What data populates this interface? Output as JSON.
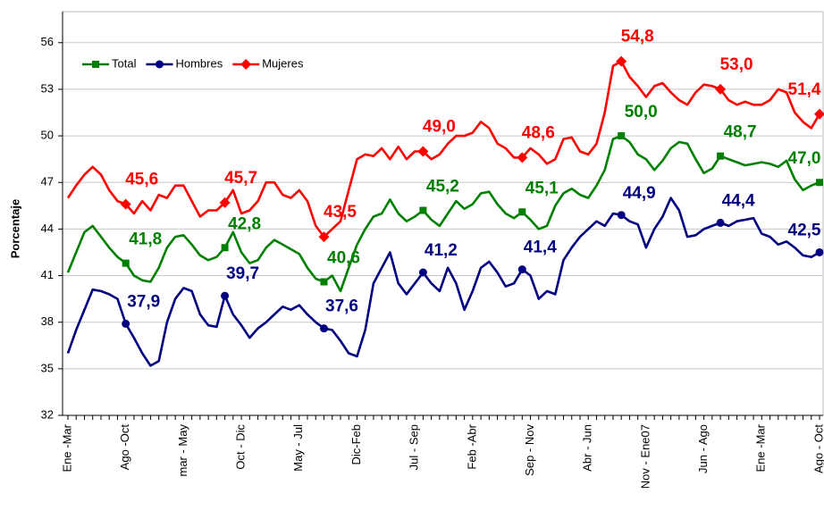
{
  "chart_data": {
    "type": "line",
    "y_label": "Porcentaje",
    "categories": [
      "Ene -Mar",
      null,
      null,
      null,
      null,
      null,
      null,
      "Ago -Oct",
      null,
      null,
      null,
      null,
      null,
      null,
      "mar - May",
      null,
      null,
      null,
      null,
      null,
      null,
      "Oct - Dic",
      null,
      null,
      null,
      null,
      null,
      null,
      "May - Jul",
      null,
      null,
      null,
      null,
      null,
      null,
      "Dic-Feb",
      null,
      null,
      null,
      null,
      null,
      null,
      "Jul - Sep",
      null,
      null,
      null,
      null,
      null,
      null,
      "Feb -Abr",
      null,
      null,
      null,
      null,
      null,
      null,
      "Sep - Nov",
      null,
      null,
      null,
      null,
      null,
      null,
      "Abr - Jun",
      null,
      null,
      null,
      null,
      null,
      null,
      "Nov - Ene07",
      null,
      null,
      null,
      null,
      null,
      null,
      "Jun - Ago",
      null,
      null,
      null,
      null,
      null,
      null,
      "Ene -Mar",
      null,
      null,
      null,
      null,
      null,
      null,
      "Ago - Oct"
    ],
    "series": [
      {
        "name": "Total",
        "color": "#008000",
        "marker": "square",
        "values": [
          41.2,
          42.5,
          43.8,
          44.2,
          43.5,
          42.8,
          42.2,
          41.8,
          41.0,
          40.7,
          40.6,
          41.5,
          42.8,
          43.5,
          43.6,
          43.0,
          42.3,
          42.0,
          42.2,
          42.8,
          43.8,
          42.5,
          41.8,
          42.0,
          42.8,
          43.3,
          43.0,
          42.7,
          42.4,
          41.5,
          40.8,
          40.6,
          41.0,
          40.0,
          41.5,
          43.0,
          44.0,
          44.8,
          45.0,
          45.9,
          45.0,
          44.5,
          44.8,
          45.2,
          44.6,
          44.2,
          45.0,
          45.8,
          45.3,
          45.6,
          46.3,
          46.4,
          45.6,
          45.0,
          44.7,
          45.1,
          44.6,
          44.0,
          44.2,
          45.5,
          46.3,
          46.6,
          46.2,
          46.0,
          46.8,
          47.8,
          49.8,
          50.0,
          49.6,
          48.8,
          48.5,
          47.8,
          48.4,
          49.2,
          49.6,
          49.5,
          48.5,
          47.6,
          47.9,
          48.7,
          48.5,
          48.3,
          48.1,
          48.2,
          48.3,
          48.2,
          48.0,
          48.4,
          47.2,
          46.5,
          46.8,
          47.0
        ],
        "value_labels": [
          null,
          null,
          null,
          null,
          null,
          null,
          null,
          "41,8",
          null,
          null,
          null,
          null,
          null,
          null,
          null,
          null,
          null,
          null,
          null,
          "42,8",
          null,
          null,
          null,
          null,
          null,
          null,
          null,
          null,
          null,
          null,
          null,
          "40,6",
          null,
          null,
          null,
          null,
          null,
          null,
          null,
          null,
          null,
          null,
          null,
          "45,2",
          null,
          null,
          null,
          null,
          null,
          null,
          null,
          null,
          null,
          null,
          null,
          "45,1",
          null,
          null,
          null,
          null,
          null,
          null,
          null,
          null,
          null,
          null,
          null,
          "50,0",
          null,
          null,
          null,
          null,
          null,
          null,
          null,
          null,
          null,
          null,
          null,
          "48,7",
          null,
          null,
          null,
          null,
          null,
          null,
          null,
          null,
          null,
          null,
          null,
          "47,0"
        ]
      },
      {
        "name": "Hombres",
        "color": "#000080",
        "marker": "circle",
        "values": [
          36.0,
          37.5,
          38.8,
          40.1,
          40.0,
          39.8,
          39.5,
          37.9,
          37.0,
          36.0,
          35.2,
          35.5,
          38.0,
          39.5,
          40.2,
          40.0,
          38.5,
          37.8,
          37.7,
          39.7,
          38.5,
          37.8,
          37.0,
          37.6,
          38.0,
          38.5,
          39.0,
          38.8,
          39.1,
          38.5,
          38.0,
          37.6,
          37.5,
          36.8,
          36.0,
          35.8,
          37.5,
          40.5,
          41.5,
          42.5,
          40.5,
          39.8,
          40.5,
          41.2,
          40.5,
          40.0,
          41.5,
          40.5,
          38.8,
          40.0,
          41.5,
          41.9,
          41.2,
          40.3,
          40.5,
          41.4,
          41.0,
          39.5,
          40.0,
          39.8,
          42.0,
          42.8,
          43.5,
          44.0,
          44.5,
          44.2,
          45.0,
          44.9,
          44.5,
          44.3,
          42.8,
          44.0,
          44.8,
          46.0,
          45.2,
          43.5,
          43.6,
          44.0,
          44.2,
          44.4,
          44.2,
          44.5,
          44.6,
          44.7,
          43.7,
          43.5,
          43.0,
          43.2,
          42.8,
          42.3,
          42.2,
          42.5
        ],
        "value_labels": [
          null,
          null,
          null,
          null,
          null,
          null,
          null,
          "37,9",
          null,
          null,
          null,
          null,
          null,
          null,
          null,
          null,
          null,
          null,
          null,
          "39,7",
          null,
          null,
          null,
          null,
          null,
          null,
          null,
          null,
          null,
          null,
          null,
          "37,6",
          null,
          null,
          null,
          null,
          null,
          null,
          null,
          null,
          null,
          null,
          null,
          "41,2",
          null,
          null,
          null,
          null,
          null,
          null,
          null,
          null,
          null,
          null,
          null,
          "41,4",
          null,
          null,
          null,
          null,
          null,
          null,
          null,
          null,
          null,
          null,
          null,
          "44,9",
          null,
          null,
          null,
          null,
          null,
          null,
          null,
          null,
          null,
          null,
          null,
          "44,4",
          null,
          null,
          null,
          null,
          null,
          null,
          null,
          null,
          null,
          null,
          null,
          "42,5"
        ]
      },
      {
        "name": "Mujeres",
        "color": "#ff0000",
        "marker": "diamond",
        "values": [
          46.0,
          46.8,
          47.5,
          48.0,
          47.5,
          46.5,
          45.8,
          45.6,
          45.0,
          45.8,
          45.2,
          46.2,
          46.0,
          46.8,
          46.8,
          45.8,
          44.8,
          45.2,
          45.2,
          45.7,
          46.5,
          45.0,
          45.2,
          45.8,
          47.0,
          47.0,
          46.2,
          46.0,
          46.5,
          45.8,
          44.2,
          43.5,
          44.0,
          44.5,
          46.5,
          48.5,
          48.8,
          48.7,
          49.2,
          48.5,
          49.3,
          48.5,
          49.0,
          49.0,
          48.5,
          48.8,
          49.5,
          50.0,
          50.0,
          50.2,
          50.9,
          50.5,
          49.5,
          49.2,
          48.6,
          48.6,
          49.2,
          48.8,
          48.2,
          48.5,
          49.8,
          49.9,
          49.0,
          48.8,
          49.5,
          51.5,
          54.5,
          54.8,
          53.8,
          53.2,
          52.5,
          53.2,
          53.4,
          52.8,
          52.3,
          52.0,
          52.8,
          53.3,
          53.2,
          53.0,
          52.3,
          52.0,
          52.2,
          52.0,
          52.0,
          52.3,
          53.0,
          52.8,
          51.5,
          50.9,
          50.5,
          51.4
        ],
        "value_labels": [
          null,
          null,
          null,
          null,
          null,
          null,
          null,
          "45,6",
          null,
          null,
          null,
          null,
          null,
          null,
          null,
          null,
          null,
          null,
          null,
          "45,7",
          null,
          null,
          null,
          null,
          null,
          null,
          null,
          null,
          null,
          null,
          null,
          "43,5",
          null,
          null,
          null,
          null,
          null,
          null,
          null,
          null,
          null,
          null,
          null,
          "49,0",
          null,
          null,
          null,
          null,
          null,
          null,
          null,
          null,
          null,
          null,
          null,
          "48,6",
          null,
          null,
          null,
          null,
          null,
          null,
          null,
          null,
          null,
          null,
          null,
          "54,8",
          null,
          null,
          null,
          null,
          null,
          null,
          null,
          null,
          null,
          null,
          null,
          "53,0",
          null,
          null,
          null,
          null,
          null,
          null,
          null,
          null,
          null,
          null,
          null,
          "51,4"
        ]
      }
    ],
    "ylim": [
      32,
      58
    ],
    "yticks": [
      32,
      35,
      38,
      41,
      44,
      47,
      50,
      53,
      56
    ],
    "grid": true,
    "legend": "top-left"
  }
}
